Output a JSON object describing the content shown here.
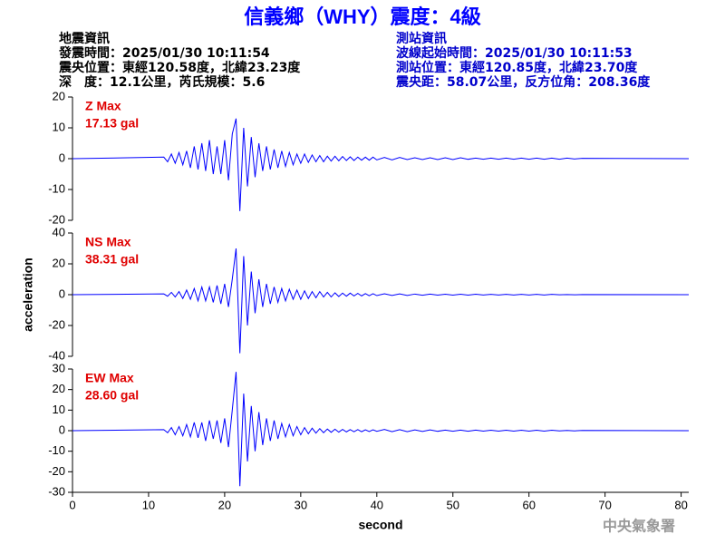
{
  "header": {
    "title": "信義鄉（WHY）震度：4級",
    "left_info": [
      "地震資訊",
      "發震時間：2025/01/30 10:11:54",
      "震央位置：東經120.58度，北緯23.23度",
      "深　度：12.1公里，芮氏規模：5.6"
    ],
    "right_info": [
      "測站資訊",
      "波線起始時間：2025/01/30 10:11:53",
      "測站位置：東經120.85度，北緯23.70度",
      "震央距：58.07公里，反方位角：208.36度"
    ],
    "footer": "中央氣象署"
  },
  "chart_data": [
    {
      "type": "line",
      "max_label": "Z Max",
      "max_value_label": "17.13 gal",
      "x": [
        0,
        12,
        12.5,
        13,
        13.5,
        14,
        14.5,
        15,
        15.5,
        16,
        16.5,
        17,
        17.5,
        18,
        18.5,
        19,
        19.5,
        20,
        20.5,
        21,
        21.5,
        22,
        22.5,
        23,
        23.5,
        24,
        24.5,
        25,
        25.5,
        26,
        26.5,
        27,
        27.5,
        28,
        28.5,
        29,
        29.5,
        30,
        30.5,
        31,
        31.5,
        32,
        32.5,
        33,
        33.5,
        34,
        34.5,
        35,
        35.5,
        36,
        36.5,
        37,
        37.5,
        38,
        38.5,
        39,
        39.5,
        40,
        41,
        42,
        43,
        44,
        45,
        46,
        47,
        48,
        49,
        50,
        51,
        52,
        53,
        54,
        55,
        56,
        57,
        58,
        59,
        60,
        61,
        62,
        63,
        64,
        65,
        66,
        67,
        81
      ],
      "series": [
        {
          "color": "#0000ff",
          "values": [
            0,
            0.5,
            -1,
            1.5,
            -1.5,
            2,
            -2,
            2.5,
            -3,
            4,
            -3.5,
            5,
            -4,
            6,
            -5,
            4,
            -5,
            6,
            -7,
            8,
            13,
            -17,
            10,
            -9,
            7,
            -6,
            5,
            -4,
            4,
            -3.5,
            3,
            -3,
            2.5,
            -2.5,
            2,
            -2,
            1.5,
            -1.5,
            1.5,
            -1.2,
            1.2,
            -1,
            1,
            -1,
            0.8,
            -0.8,
            0.8,
            -0.7,
            0.7,
            -0.6,
            0.6,
            -0.6,
            0.5,
            -0.5,
            0.5,
            -0.5,
            0.5,
            -0.4,
            0.4,
            -0.4,
            0.4,
            -0.3,
            0.3,
            -0.3,
            0.3,
            -0.3,
            0.3,
            -0.3,
            0.3,
            -0.2,
            0.2,
            -0.2,
            0.2,
            -0.2,
            0.2,
            -0.2,
            0.2,
            -0.2,
            0.2,
            -0.2,
            0.2,
            -0.2,
            0.2,
            -0.1,
            0.1,
            0
          ]
        }
      ],
      "xlim": [
        0,
        81
      ],
      "ylim": [
        -20,
        20
      ],
      "yticks": [
        -20,
        -10,
        0,
        10,
        20
      ]
    },
    {
      "type": "line",
      "max_label": "NS Max",
      "max_value_label": "38.31 gal",
      "ylabel": "acceleration",
      "x": [
        0,
        12,
        12.5,
        13,
        13.5,
        14,
        14.5,
        15,
        15.5,
        16,
        16.5,
        17,
        17.5,
        18,
        18.5,
        19,
        19.5,
        20,
        20.5,
        21,
        21.5,
        22,
        22.5,
        23,
        23.5,
        24,
        24.5,
        25,
        25.5,
        26,
        26.5,
        27,
        27.5,
        28,
        28.5,
        29,
        29.5,
        30,
        30.5,
        31,
        31.5,
        32,
        32.5,
        33,
        33.5,
        34,
        34.5,
        35,
        35.5,
        36,
        36.5,
        37,
        37.5,
        38,
        38.5,
        39,
        39.5,
        40,
        41,
        42,
        43,
        44,
        45,
        46,
        47,
        48,
        49,
        50,
        51,
        52,
        53,
        54,
        55,
        56,
        57,
        58,
        59,
        60,
        61,
        62,
        63,
        64,
        65,
        66,
        67,
        81
      ],
      "series": [
        {
          "color": "#0000ff",
          "values": [
            0,
            0.5,
            -1,
            1.5,
            -1.5,
            2,
            -2.5,
            3,
            -3,
            4,
            -4,
            5,
            -4,
            5,
            -5,
            6,
            -6,
            7,
            -8,
            10,
            30,
            -38,
            25,
            -20,
            15,
            -12,
            10,
            -8,
            7,
            -6,
            5,
            -5,
            4,
            -4,
            3.5,
            -3,
            3,
            -3,
            2.5,
            -2.5,
            2,
            -2,
            2,
            -1.5,
            1.5,
            -1.5,
            1.2,
            -1.2,
            1,
            -1,
            1,
            -0.8,
            0.8,
            -0.8,
            0.7,
            -0.7,
            0.6,
            -0.6,
            0.6,
            -0.5,
            0.5,
            -0.5,
            0.4,
            -0.4,
            0.4,
            -0.3,
            0.3,
            -0.3,
            0.3,
            -0.3,
            0.3,
            -0.2,
            0.2,
            -0.2,
            0.2,
            -0.2,
            0.2,
            -0.2,
            0.2,
            -0.2,
            0.2,
            -0.1,
            0.1,
            -0.1,
            0.1,
            0
          ]
        }
      ],
      "xlim": [
        0,
        81
      ],
      "ylim": [
        -40,
        40
      ],
      "yticks": [
        -40,
        -20,
        0,
        20,
        40
      ]
    },
    {
      "type": "line",
      "max_label": "EW Max",
      "max_value_label": "28.60 gal",
      "xlabel": "second",
      "x": [
        0,
        12,
        12.5,
        13,
        13.5,
        14,
        14.5,
        15,
        15.5,
        16,
        16.5,
        17,
        17.5,
        18,
        18.5,
        19,
        19.5,
        20,
        20.5,
        21,
        21.5,
        22,
        22.5,
        23,
        23.5,
        24,
        24.5,
        25,
        25.5,
        26,
        26.5,
        27,
        27.5,
        28,
        28.5,
        29,
        29.5,
        30,
        30.5,
        31,
        31.5,
        32,
        32.5,
        33,
        33.5,
        34,
        34.5,
        35,
        35.5,
        36,
        36.5,
        37,
        37.5,
        38,
        38.5,
        39,
        39.5,
        40,
        41,
        42,
        43,
        44,
        45,
        46,
        47,
        48,
        49,
        50,
        51,
        52,
        53,
        54,
        55,
        56,
        57,
        58,
        59,
        60,
        61,
        62,
        63,
        64,
        65,
        66,
        67,
        81
      ],
      "series": [
        {
          "color": "#0000ff",
          "values": [
            0,
            0.5,
            -1,
            1.5,
            -2,
            2,
            -2.5,
            3,
            -3,
            4,
            -3.5,
            4,
            -5,
            5,
            -4,
            5,
            -6,
            6,
            -8,
            10,
            28.6,
            -27,
            18,
            -15,
            12,
            -10,
            9,
            -7,
            6,
            -5,
            5,
            -4,
            3.5,
            -3,
            3,
            -2.5,
            2,
            -2,
            1.5,
            -1.5,
            1.2,
            -1.2,
            1,
            -1,
            0.8,
            -0.8,
            0.7,
            -0.7,
            0.6,
            -0.6,
            0.5,
            -0.5,
            0.5,
            -0.5,
            0.4,
            -0.4,
            0.4,
            -0.3,
            0.6,
            -0.5,
            0.5,
            -0.5,
            0.4,
            -0.4,
            0.4,
            -0.3,
            0.3,
            -0.3,
            0.3,
            -0.3,
            0.3,
            -0.2,
            0.2,
            -0.2,
            0.2,
            -0.2,
            0.2,
            -0.2,
            0.2,
            -0.2,
            0.2,
            -0.1,
            0.1,
            -0.1,
            0.1,
            0
          ]
        }
      ],
      "xlim": [
        0,
        81
      ],
      "xticks": [
        0,
        10,
        20,
        30,
        40,
        50,
        60,
        70,
        80
      ],
      "ylim": [
        -30,
        30
      ],
      "yticks": [
        -30,
        -20,
        -10,
        0,
        10,
        20,
        30
      ]
    }
  ]
}
